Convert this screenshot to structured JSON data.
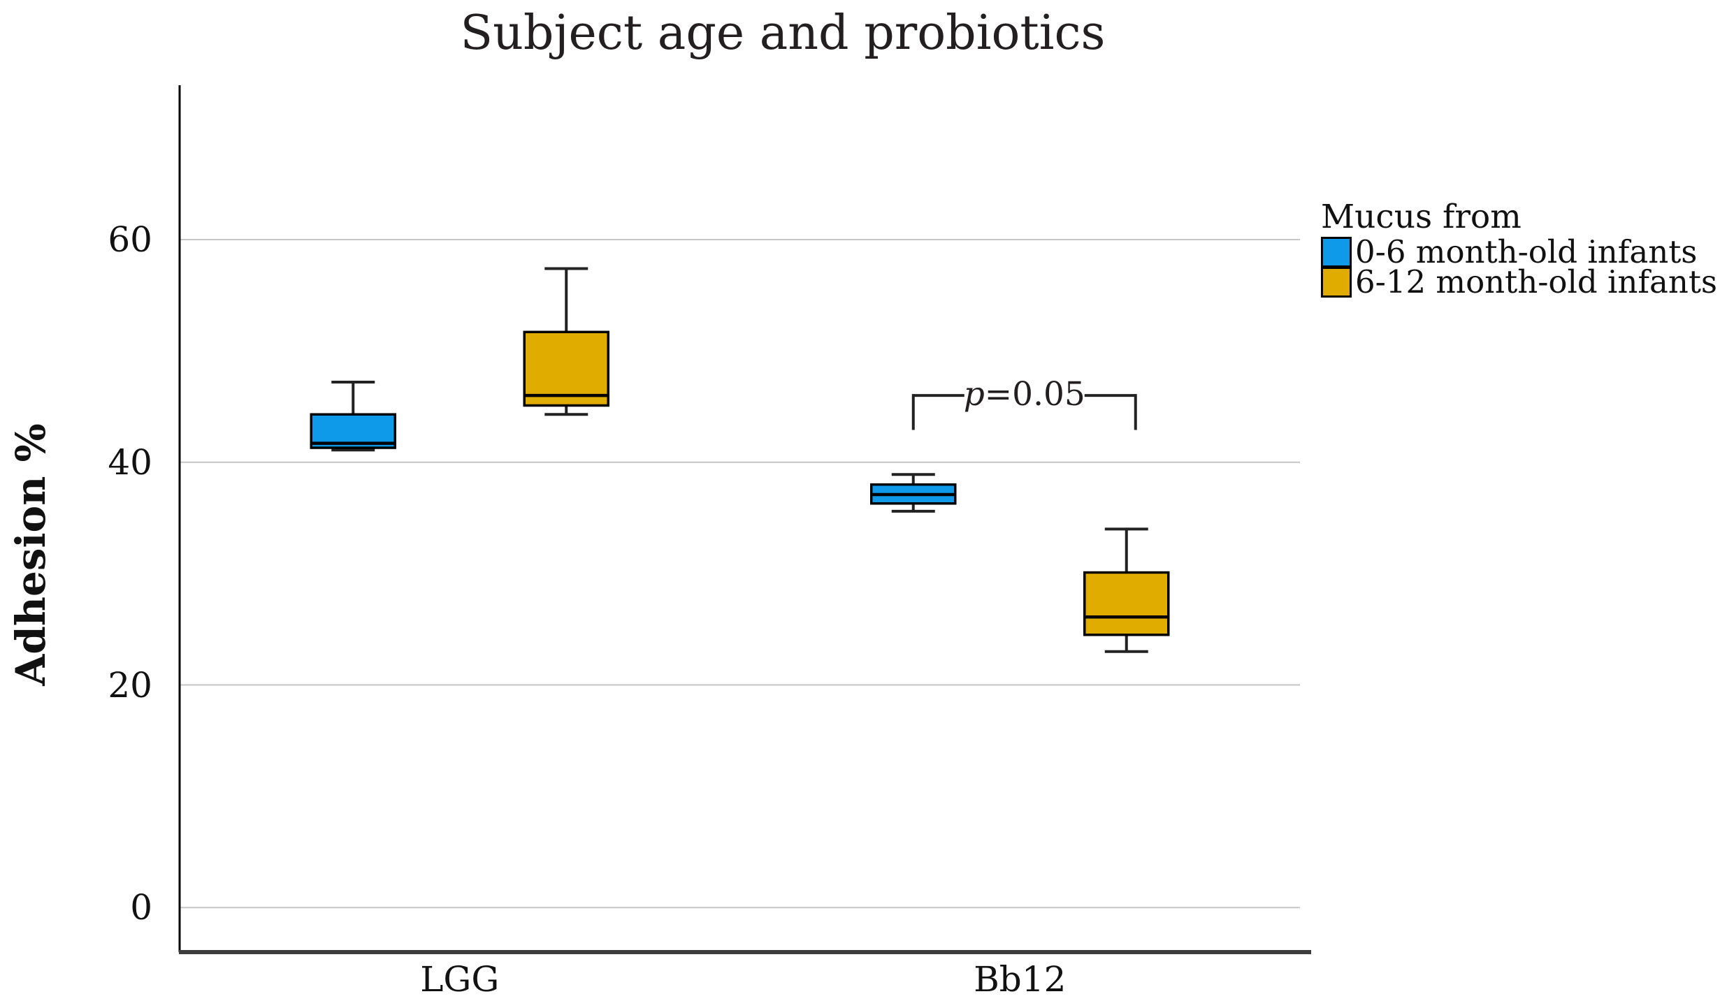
{
  "chart_data": {
    "type": "boxplot",
    "title": "Subject age and probiotics",
    "ylabel": "Adhesion %",
    "xlabel": "",
    "categories": [
      "LGG",
      "Bb12"
    ],
    "yticks": [
      0,
      20,
      40,
      60
    ],
    "ylim": [
      -4,
      74
    ],
    "grid": "horizontal-light-gray",
    "legend": {
      "title": "Mucus from",
      "position": "right",
      "entries": [
        {
          "label": "0-6 month-old infants",
          "color": "#0E9AE8"
        },
        {
          "label": "6-12 month-old infants",
          "color": "#E0AC00"
        }
      ]
    },
    "series": [
      {
        "name": "0-6 month-old infants",
        "color": "#0E9AE8",
        "boxes": [
          {
            "category": "LGG",
            "min": 41.1,
            "q1": 41.3,
            "median": 41.7,
            "q3": 44.3,
            "max": 47.2
          },
          {
            "category": "Bb12",
            "min": 35.6,
            "q1": 36.3,
            "median": 37.1,
            "q3": 38.0,
            "max": 38.9
          }
        ]
      },
      {
        "name": "6-12 month-old infants",
        "color": "#E0AC00",
        "boxes": [
          {
            "category": "LGG",
            "min": 44.3,
            "q1": 45.1,
            "median": 46.0,
            "q3": 51.7,
            "max": 57.4
          },
          {
            "category": "Bb12",
            "min": 23.0,
            "q1": 24.5,
            "median": 26.1,
            "q3": 30.1,
            "max": 34.0
          }
        ]
      }
    ],
    "annotation": {
      "text": "p=0.05",
      "category": "Bb12",
      "bar_y": 46.0,
      "leg_bottom_y": 42.9
    },
    "colors": {
      "gridline": "#c6c6c6",
      "axis_y": "#000000",
      "axis_x": "#3c3c3c",
      "box_border": "#000000",
      "whisker": "#222222"
    }
  }
}
